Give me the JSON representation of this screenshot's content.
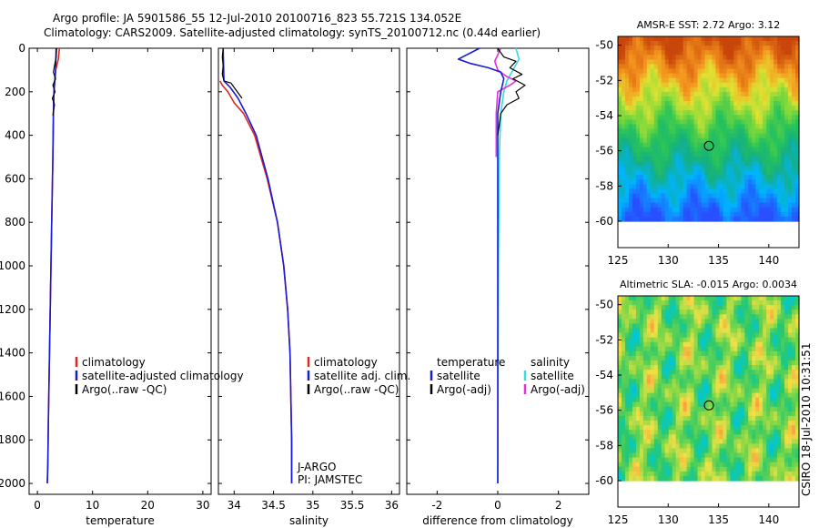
{
  "header": {
    "line1": "Argo profile: JA 5901586_55 12-Jul-2010 20100716_823 55.721S 134.052E",
    "line2": "Climatology: CARS2009. Satellite-adjusted climatology: synTS_20100712.nc (0.44d earlier)"
  },
  "side_label": "CSIRO 18-Jul-2010 10:31:51",
  "colors": {
    "clim": "#e0281e",
    "sat": "#1a1ad8",
    "argo": "#000000",
    "sat_sal": "#33dde0",
    "argo_sal": "#dd33dd"
  },
  "chart_data": [
    {
      "type": "line",
      "name": "temperature-profile",
      "xlabel": "temperature",
      "xlim": [
        -1.5,
        31.5
      ],
      "ylim": [
        2050,
        0
      ],
      "xticks": [
        0,
        10,
        20,
        30
      ],
      "yticks": [
        0,
        200,
        400,
        600,
        800,
        1000,
        1200,
        1400,
        1600,
        1800,
        2000
      ],
      "legend": [
        {
          "label": "climatology",
          "color": "#e0281e"
        },
        {
          "label": "satellite-adjusted climatology",
          "color": "#1a1ad8"
        },
        {
          "label": "Argo(..raw -QC)",
          "color": "#000000"
        }
      ],
      "series": [
        {
          "name": "climatology",
          "color": "#e0281e",
          "width": 1.6,
          "x": [
            4.0,
            3.8,
            3.3,
            3.0,
            2.9,
            2.8,
            2.6,
            2.4,
            2.2,
            2.0,
            1.9,
            1.8
          ],
          "y": [
            0,
            50,
            100,
            200,
            300,
            500,
            800,
            1100,
            1400,
            1700,
            1900,
            2000
          ]
        },
        {
          "name": "satellite-adjusted climatology",
          "color": "#1a1ad8",
          "width": 1.6,
          "x": [
            3.4,
            3.3,
            3.0,
            2.9,
            2.8,
            2.6,
            2.4,
            2.2,
            2.0,
            1.9,
            1.8
          ],
          "y": [
            0,
            100,
            200,
            300,
            500,
            800,
            1100,
            1400,
            1700,
            1900,
            2000
          ]
        },
        {
          "name": "Argo",
          "color": "#000000",
          "width": 1.2,
          "x": [
            3.5,
            3.4,
            3.1,
            2.9,
            3.3,
            2.8,
            3.2,
            2.7,
            3.1,
            2.9,
            2.8
          ],
          "y": [
            0,
            40,
            80,
            110,
            140,
            170,
            200,
            230,
            260,
            290,
            310
          ]
        }
      ]
    },
    {
      "type": "line",
      "name": "salinity-profile",
      "xlabel": "salinity",
      "xlim": [
        33.8,
        36.1
      ],
      "ylim": [
        2050,
        0
      ],
      "xticks": [
        34,
        34.5,
        35,
        35.5,
        36
      ],
      "xticklabels": [
        "34",
        "34.5",
        "35",
        "35.5",
        "36"
      ],
      "legend": [
        {
          "label": "climatology",
          "color": "#e0281e"
        },
        {
          "label": "satellite adj. clim.",
          "color": "#1a1ad8"
        },
        {
          "label": "Argo(..raw -QC)",
          "color": "#000000"
        }
      ],
      "annotation": [
        "J-ARGO",
        "PI: JAMSTEC"
      ],
      "series": [
        {
          "name": "climatology",
          "color": "#e0281e",
          "width": 1.6,
          "x": [
            33.82,
            33.85,
            33.92,
            34.0,
            34.12,
            34.26,
            34.42,
            34.55,
            34.63,
            34.68,
            34.71,
            34.72,
            34.73,
            34.73
          ],
          "y": [
            150,
            170,
            200,
            250,
            300,
            400,
            600,
            800,
            1000,
            1200,
            1400,
            1600,
            1800,
            2000
          ]
        },
        {
          "name": "satellite adj. clim.",
          "color": "#1a1ad8",
          "width": 1.6,
          "x": [
            33.86,
            33.87,
            33.95,
            34.05,
            34.15,
            34.28,
            34.43,
            34.55,
            34.63,
            34.68,
            34.71,
            34.72,
            34.73,
            34.73
          ],
          "y": [
            0,
            150,
            180,
            230,
            300,
            400,
            600,
            800,
            1000,
            1200,
            1400,
            1600,
            1800,
            2000
          ]
        },
        {
          "name": "Argo",
          "color": "#000000",
          "width": 1.2,
          "x": [
            33.86,
            33.85,
            33.86,
            33.85,
            33.87,
            33.96,
            34.02,
            34.1
          ],
          "y": [
            0,
            40,
            80,
            120,
            150,
            160,
            190,
            230
          ]
        }
      ]
    },
    {
      "type": "line",
      "name": "difference-profile",
      "xlabel": "difference from climatology",
      "xlim": [
        -3.0,
        3.0
      ],
      "ylim": [
        2050,
        0
      ],
      "xticks": [
        -2,
        0,
        2
      ],
      "legend_left": [
        {
          "label": "temperature",
          "color": ""
        },
        {
          "label": "satellite",
          "color": "#1a1ad8"
        },
        {
          "label": "Argo(-adj)",
          "color": "#000000"
        }
      ],
      "legend_right": [
        {
          "label": "salinity",
          "color": ""
        },
        {
          "label": "satellite",
          "color": "#33dde0"
        },
        {
          "label": "Argo(-adj)",
          "color": "#dd33dd"
        }
      ],
      "series": [
        {
          "name": "salinity satellite",
          "color": "#33dde0",
          "width": 1.6,
          "x": [
            0.6,
            0.7,
            0.5,
            0.3,
            0.2,
            0.1,
            0.05,
            0.02,
            0.0
          ],
          "y": [
            0,
            50,
            100,
            150,
            200,
            300,
            500,
            1000,
            2000
          ]
        },
        {
          "name": "salinity Argo(-adj)",
          "color": "#dd33dd",
          "width": 1.6,
          "x": [
            0.1,
            -0.1,
            0.0,
            0.3,
            0.6,
            0.4,
            0.0,
            -0.05,
            -0.05
          ],
          "y": [
            0,
            60,
            100,
            130,
            150,
            170,
            200,
            300,
            500
          ]
        },
        {
          "name": "temperature satellite",
          "color": "#1a1ad8",
          "width": 1.6,
          "x": [
            -0.6,
            -1.3,
            -0.9,
            -0.3,
            0.1,
            0.2,
            0.1,
            0.0,
            0.0,
            0.0
          ],
          "y": [
            0,
            50,
            70,
            90,
            110,
            140,
            200,
            300,
            1000,
            2000
          ]
        },
        {
          "name": "temperature Argo(-adj)",
          "color": "#000000",
          "width": 1.2,
          "x": [
            0.0,
            0.1,
            0.2,
            0.6,
            0.4,
            0.8,
            0.5,
            0.9,
            0.6,
            0.7,
            0.3,
            0.1,
            0.05,
            0.0
          ],
          "y": [
            0,
            20,
            40,
            60,
            90,
            120,
            140,
            170,
            200,
            230,
            260,
            300,
            350,
            400
          ]
        }
      ]
    },
    {
      "type": "heatmap",
      "name": "amsr-e-sst-map",
      "title": "AMSR-E SST: 2.72  Argo: 3.12",
      "xlim": [
        125,
        143
      ],
      "ylim": [
        -61.5,
        -49.5
      ],
      "data_extent": {
        "lon": [
          125,
          143
        ],
        "lat": [
          -60,
          -49.5
        ]
      },
      "xticks": [
        125,
        130,
        135,
        140
      ],
      "yticks": [
        -50,
        -52,
        -54,
        -56,
        -58,
        -60
      ],
      "marker": {
        "lon": 134.05,
        "lat": -55.72
      }
    },
    {
      "type": "heatmap",
      "name": "altimetric-sla-map",
      "title": "Altimetric SLA: -0.015  Argo: 0.0034",
      "xlim": [
        125,
        143
      ],
      "ylim": [
        -61.5,
        -49.5
      ],
      "data_extent": {
        "lon": [
          125,
          143
        ],
        "lat": [
          -60,
          -49.5
        ]
      },
      "xticks": [
        125,
        130,
        135,
        140
      ],
      "yticks": [
        -50,
        -52,
        -54,
        -56,
        -58,
        -60
      ],
      "marker": {
        "lon": 134.05,
        "lat": -55.72
      }
    }
  ]
}
